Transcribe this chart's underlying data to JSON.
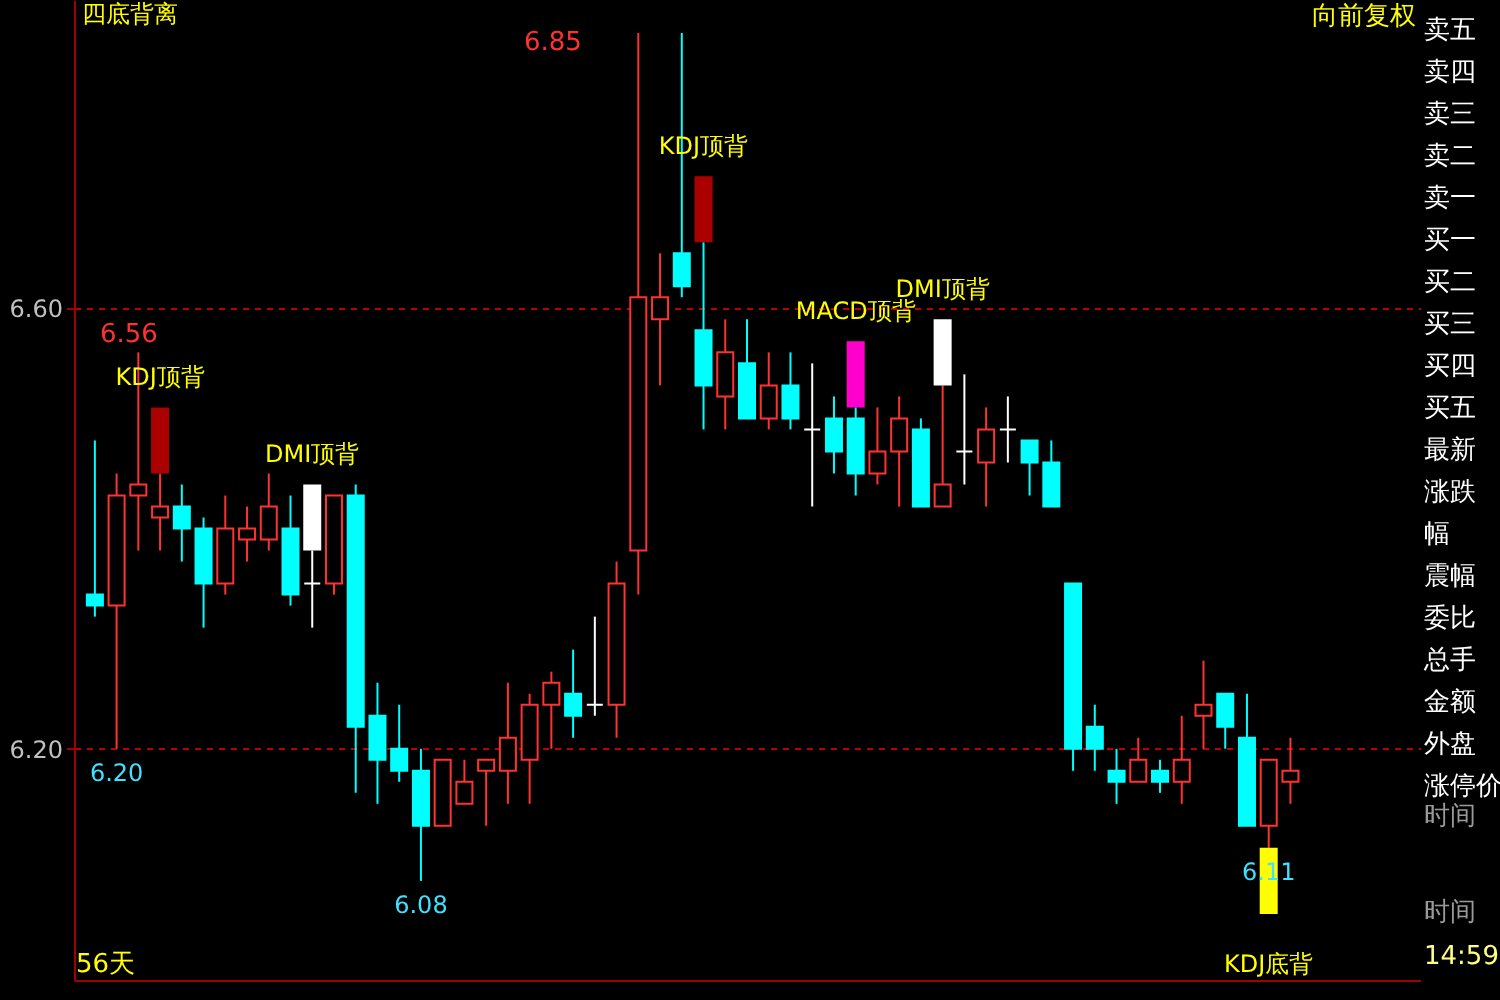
{
  "chart_data": {
    "type": "candlestick",
    "title": "四底背离",
    "categories": [
      null,
      null,
      null,
      null,
      null,
      null,
      null,
      null,
      null,
      null,
      null,
      null,
      null,
      null,
      null,
      null,
      null,
      null,
      null,
      null,
      null,
      null,
      null,
      null,
      null,
      null,
      null,
      null,
      null,
      null,
      null,
      null,
      null,
      null,
      null,
      null,
      null,
      null,
      null,
      null,
      null,
      null,
      null,
      null,
      null,
      null,
      null,
      null,
      null,
      null,
      null,
      null,
      null,
      null,
      null,
      null
    ],
    "ohlc": [
      [
        6.34,
        6.48,
        6.32,
        6.33
      ],
      [
        6.33,
        6.45,
        6.2,
        6.43
      ],
      [
        6.43,
        6.56,
        6.38,
        6.44
      ],
      [
        6.41,
        6.45,
        6.38,
        6.42
      ],
      [
        6.42,
        6.44,
        6.37,
        6.4
      ],
      [
        6.4,
        6.41,
        6.31,
        6.35
      ],
      [
        6.35,
        6.43,
        6.34,
        6.4
      ],
      [
        6.39,
        6.42,
        6.37,
        6.4
      ],
      [
        6.39,
        6.45,
        6.38,
        6.42
      ],
      [
        6.4,
        6.43,
        6.33,
        6.34
      ],
      [
        6.35,
        6.38,
        6.31,
        6.35
      ],
      [
        6.35,
        6.43,
        6.34,
        6.43
      ],
      [
        6.43,
        6.44,
        6.16,
        6.22
      ],
      [
        6.23,
        6.26,
        6.15,
        6.19
      ],
      [
        6.2,
        6.24,
        6.17,
        6.18
      ],
      [
        6.18,
        6.2,
        6.08,
        6.13
      ],
      [
        6.13,
        6.19,
        6.13,
        6.19
      ],
      [
        6.15,
        6.19,
        6.15,
        6.17
      ],
      [
        6.18,
        6.19,
        6.13,
        6.19
      ],
      [
        6.18,
        6.26,
        6.15,
        6.21
      ],
      [
        6.19,
        6.25,
        6.15,
        6.24
      ],
      [
        6.24,
        6.27,
        6.2,
        6.26
      ],
      [
        6.25,
        6.29,
        6.21,
        6.23
      ],
      [
        6.24,
        6.32,
        6.23,
        6.24
      ],
      [
        6.24,
        6.37,
        6.21,
        6.35
      ],
      [
        6.38,
        6.85,
        6.34,
        6.61
      ],
      [
        6.59,
        6.65,
        6.53,
        6.61
      ],
      [
        6.65,
        6.85,
        6.61,
        6.62
      ],
      [
        6.58,
        6.66,
        6.49,
        6.53
      ],
      [
        6.52,
        6.59,
        6.49,
        6.56
      ],
      [
        6.55,
        6.59,
        6.5,
        6.5
      ],
      [
        6.5,
        6.56,
        6.49,
        6.53
      ],
      [
        6.53,
        6.56,
        6.49,
        6.5
      ],
      [
        6.49,
        6.55,
        6.42,
        6.49
      ],
      [
        6.5,
        6.52,
        6.45,
        6.47
      ],
      [
        6.5,
        6.51,
        6.43,
        6.45
      ],
      [
        6.45,
        6.51,
        6.44,
        6.47
      ],
      [
        6.47,
        6.52,
        6.42,
        6.5
      ],
      [
        6.49,
        6.5,
        6.42,
        6.42
      ],
      [
        6.42,
        6.53,
        6.42,
        6.44
      ],
      [
        6.47,
        6.54,
        6.44,
        6.47
      ],
      [
        6.46,
        6.51,
        6.42,
        6.49
      ],
      [
        6.49,
        6.52,
        6.46,
        6.49
      ],
      [
        6.48,
        6.48,
        6.43,
        6.46
      ],
      [
        6.46,
        6.48,
        6.42,
        6.42
      ],
      [
        6.35,
        6.35,
        6.18,
        6.2
      ],
      [
        6.22,
        6.24,
        6.18,
        6.2
      ],
      [
        6.18,
        6.2,
        6.15,
        6.17
      ],
      [
        6.17,
        6.21,
        6.17,
        6.19
      ],
      [
        6.18,
        6.19,
        6.16,
        6.17
      ],
      [
        6.17,
        6.23,
        6.15,
        6.19
      ],
      [
        6.23,
        6.28,
        6.2,
        6.24
      ],
      [
        6.25,
        6.25,
        6.2,
        6.22
      ],
      [
        6.21,
        6.25,
        6.13,
        6.13
      ],
      [
        6.13,
        6.19,
        6.11,
        6.19
      ],
      [
        6.17,
        6.21,
        6.15,
        6.18
      ]
    ],
    "series": [
      {
        "type": "bar",
        "name": "KDJ顶背",
        "color": "#aa0000",
        "values": [
          null,
          null,
          null,
          0.06,
          null,
          null,
          null,
          null,
          null,
          null,
          null,
          null,
          null,
          null,
          null,
          null,
          null,
          null,
          null,
          null,
          null,
          null,
          null,
          null,
          null,
          null,
          null,
          null,
          null,
          null,
          null,
          null,
          null,
          null,
          null,
          null,
          null,
          null,
          null,
          null,
          null,
          null,
          null,
          null,
          null,
          null,
          null,
          null,
          null,
          null,
          null,
          null,
          null,
          null,
          null,
          null
        ],
        "base": [
          null,
          null,
          null,
          6.45,
          null,
          null,
          null,
          null,
          null,
          null,
          null,
          null,
          null,
          null,
          null,
          null,
          null,
          null,
          null,
          null,
          null,
          null,
          null,
          null,
          null,
          null,
          null,
          null,
          null,
          null,
          null,
          null,
          null,
          null,
          null,
          null,
          null,
          null,
          null,
          null,
          null,
          null,
          null,
          null,
          null,
          null,
          null,
          null,
          null,
          null,
          null,
          null,
          null,
          null,
          null,
          null
        ]
      },
      {
        "type": "bar",
        "name": "DMI顶背",
        "color": "#ffffff",
        "values": [
          null,
          null,
          null,
          null,
          null,
          null,
          null,
          null,
          null,
          null,
          0.06,
          null,
          null,
          null,
          null,
          null,
          null,
          null,
          null,
          null,
          null,
          null,
          null,
          null,
          null,
          null,
          null,
          null,
          null,
          null,
          null,
          null,
          null,
          null,
          null,
          null,
          null,
          null,
          null,
          null,
          null,
          null,
          null,
          null,
          null,
          null,
          null,
          null,
          null,
          null,
          null,
          null,
          null,
          null,
          null,
          null
        ],
        "base": [
          null,
          null,
          null,
          null,
          null,
          null,
          null,
          null,
          null,
          null,
          6.38,
          null,
          null,
          null,
          null,
          null,
          null,
          null,
          null,
          null,
          null,
          null,
          null,
          null,
          null,
          null,
          null,
          null,
          null,
          null,
          null,
          null,
          null,
          null,
          null,
          null,
          null,
          null,
          null,
          null,
          null,
          null,
          null,
          null,
          null,
          null,
          null,
          null,
          null,
          null,
          null,
          null,
          null,
          null,
          null,
          null
        ]
      },
      {
        "type": "bar",
        "name": "KDJ顶背",
        "color": "#aa0000",
        "values": [
          null,
          null,
          null,
          null,
          null,
          null,
          null,
          null,
          null,
          null,
          null,
          null,
          null,
          null,
          null,
          null,
          null,
          null,
          null,
          null,
          null,
          null,
          null,
          null,
          null,
          null,
          null,
          null,
          0.06,
          null,
          null,
          null,
          null,
          null,
          null,
          null,
          null,
          null,
          null,
          null,
          null,
          null,
          null,
          null,
          null,
          null,
          null,
          null,
          null,
          null,
          null,
          null,
          null,
          null,
          null,
          null
        ],
        "base": [
          null,
          null,
          null,
          null,
          null,
          null,
          null,
          null,
          null,
          null,
          null,
          null,
          null,
          null,
          null,
          null,
          null,
          null,
          null,
          null,
          null,
          null,
          null,
          null,
          null,
          null,
          null,
          null,
          6.66,
          null,
          null,
          null,
          null,
          null,
          null,
          null,
          null,
          null,
          null,
          null,
          null,
          null,
          null,
          null,
          null,
          null,
          null,
          null,
          null,
          null,
          null,
          null,
          null,
          null,
          null,
          null
        ]
      },
      {
        "type": "bar",
        "name": "MACD顶背",
        "color": "#ff00cc",
        "values": [
          null,
          null,
          null,
          null,
          null,
          null,
          null,
          null,
          null,
          null,
          null,
          null,
          null,
          null,
          null,
          null,
          null,
          null,
          null,
          null,
          null,
          null,
          null,
          null,
          null,
          null,
          null,
          null,
          null,
          null,
          null,
          null,
          null,
          null,
          null,
          0.06,
          null,
          null,
          null,
          null,
          null,
          null,
          null,
          null,
          null,
          null,
          null,
          null,
          null,
          null,
          null,
          null,
          null,
          null,
          null,
          null
        ],
        "base": [
          null,
          null,
          null,
          null,
          null,
          null,
          null,
          null,
          null,
          null,
          null,
          null,
          null,
          null,
          null,
          null,
          null,
          null,
          null,
          null,
          null,
          null,
          null,
          null,
          null,
          null,
          null,
          null,
          null,
          null,
          null,
          null,
          null,
          null,
          null,
          6.51,
          null,
          null,
          null,
          null,
          null,
          null,
          null,
          null,
          null,
          null,
          null,
          null,
          null,
          null,
          null,
          null,
          null,
          null,
          null,
          null
        ]
      },
      {
        "type": "bar",
        "name": "DMI顶背",
        "color": "#ffffff",
        "values": [
          null,
          null,
          null,
          null,
          null,
          null,
          null,
          null,
          null,
          null,
          null,
          null,
          null,
          null,
          null,
          null,
          null,
          null,
          null,
          null,
          null,
          null,
          null,
          null,
          null,
          null,
          null,
          null,
          null,
          null,
          null,
          null,
          null,
          null,
          null,
          null,
          null,
          null,
          null,
          0.06,
          null,
          null,
          null,
          null,
          null,
          null,
          null,
          null,
          null,
          null,
          null,
          null,
          null,
          null,
          null,
          null
        ],
        "base": [
          null,
          null,
          null,
          null,
          null,
          null,
          null,
          null,
          null,
          null,
          null,
          null,
          null,
          null,
          null,
          null,
          null,
          null,
          null,
          null,
          null,
          null,
          null,
          null,
          null,
          null,
          null,
          null,
          null,
          null,
          null,
          null,
          null,
          null,
          null,
          null,
          null,
          null,
          null,
          6.53,
          null,
          null,
          null,
          null,
          null,
          null,
          null,
          null,
          null,
          null,
          null,
          null,
          null,
          null,
          null,
          null
        ]
      },
      {
        "type": "bar",
        "name": "KDJ底背",
        "color": "#ffff00",
        "values": [
          null,
          null,
          null,
          null,
          null,
          null,
          null,
          null,
          null,
          null,
          null,
          null,
          null,
          null,
          null,
          null,
          null,
          null,
          null,
          null,
          null,
          null,
          null,
          null,
          null,
          null,
          null,
          null,
          null,
          null,
          null,
          null,
          null,
          null,
          null,
          null,
          null,
          null,
          null,
          null,
          null,
          null,
          null,
          null,
          null,
          null,
          null,
          null,
          null,
          null,
          null,
          null,
          null,
          null,
          0.06,
          null
        ],
        "base": [
          null,
          null,
          null,
          null,
          null,
          null,
          null,
          null,
          null,
          null,
          null,
          null,
          null,
          null,
          null,
          null,
          null,
          null,
          null,
          null,
          null,
          null,
          null,
          null,
          null,
          null,
          null,
          null,
          null,
          null,
          null,
          null,
          null,
          null,
          null,
          null,
          null,
          null,
          null,
          null,
          null,
          null,
          null,
          null,
          null,
          null,
          null,
          null,
          null,
          null,
          null,
          null,
          null,
          null,
          6.05,
          null
        ]
      }
    ],
    "ylim": [
      5.99,
      6.88
    ],
    "yticks": [
      {
        "value": 6.2,
        "label": "6.20"
      },
      {
        "value": 6.6,
        "label": "6.60"
      }
    ],
    "grid": "y",
    "tick_labels": "y",
    "annotations": [
      "向前复权",
      "56天",
      "6.56",
      "6.85",
      "卖五",
      "卖四",
      "卖三",
      "卖二",
      "卖一",
      "买一",
      "买二",
      "买三",
      "买四",
      "买五",
      "最新",
      "涨跌",
      "幅",
      "震幅",
      "委比",
      "总手",
      "金额",
      "外盘",
      "涨停价",
      "时间",
      "时间",
      "14:59",
      {
        "text": "6.20",
        "y": 6.2
      },
      {
        "text": "6.08",
        "y": 6.08
      },
      {
        "text": "6.11",
        "y": 6.11
      }
    ]
  }
}
